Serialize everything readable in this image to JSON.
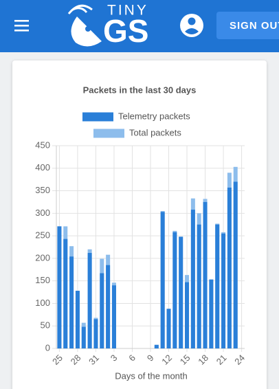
{
  "header": {
    "logo_top": "TINY",
    "logo_main": "GS",
    "button": "SIGN OUT"
  },
  "chart_data": {
    "type": "bar",
    "title": "Packets in the last 30 days",
    "xlabel": "Days of the month",
    "categories": [
      "25",
      null,
      null,
      "28",
      null,
      null,
      "31",
      null,
      null,
      "3",
      null,
      null,
      "6",
      null,
      null,
      "9",
      null,
      null,
      "12",
      null,
      null,
      "15",
      null,
      null,
      "18",
      null,
      null,
      "21",
      null,
      null,
      "24"
    ],
    "series": [
      {
        "name": "Telemetry packets",
        "color": "#2a7fd8",
        "values": [
          271,
          243,
          204,
          128,
          48,
          212,
          65,
          167,
          185,
          140,
          0,
          0,
          0,
          0,
          0,
          0,
          8,
          303,
          88,
          258,
          248,
          147,
          308,
          275,
          325,
          153,
          275,
          255,
          357,
          370,
          0
        ]
      },
      {
        "name": "Total packets",
        "color": "#8dbdec",
        "values": [
          271,
          271,
          227,
          128,
          57,
          220,
          68,
          199,
          208,
          146,
          0,
          0,
          0,
          0,
          0,
          0,
          8,
          305,
          88,
          261,
          248,
          163,
          333,
          300,
          332,
          153,
          277,
          258,
          390,
          403,
          0
        ]
      }
    ],
    "ylim": [
      0,
      450
    ],
    "yticks": [
      0,
      50,
      100,
      150,
      200,
      250,
      300,
      350,
      400,
      450
    ],
    "grid": true
  }
}
